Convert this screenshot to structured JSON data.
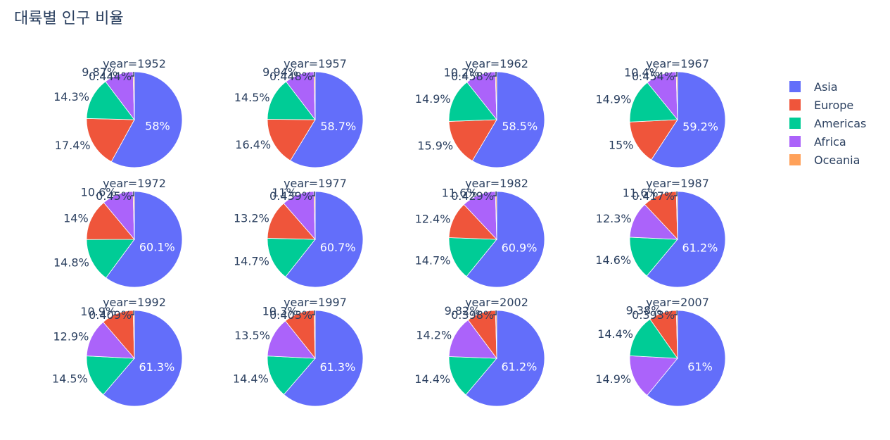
{
  "title": "대륙별 인구 비율",
  "chart_data": {
    "type": "pie",
    "legend_position": "right",
    "categories": [
      "Asia",
      "Europe",
      "Americas",
      "Africa",
      "Oceania"
    ],
    "colors": {
      "Asia": "#636efa",
      "Europe": "#ef553b",
      "Americas": "#00cc96",
      "Africa": "#ab63fa",
      "Oceania": "#ffa15a"
    },
    "panels": [
      {
        "title": "year=1952",
        "order": [
          "Asia",
          "Europe",
          "Americas",
          "Africa",
          "Oceania"
        ],
        "values": {
          "Asia": 58.0,
          "Europe": 17.4,
          "Americas": 14.3,
          "Africa": 9.87,
          "Oceania": 0.444
        },
        "labels": {
          "Asia": "58%",
          "Europe": "17.4%",
          "Americas": "14.3%",
          "Africa": "9.87%",
          "Oceania": "0.444%"
        }
      },
      {
        "title": "year=1957",
        "order": [
          "Asia",
          "Europe",
          "Americas",
          "Africa",
          "Oceania"
        ],
        "values": {
          "Asia": 58.7,
          "Europe": 16.4,
          "Americas": 14.5,
          "Africa": 9.94,
          "Oceania": 0.448
        },
        "labels": {
          "Asia": "58.7%",
          "Europe": "16.4%",
          "Americas": "14.5%",
          "Africa": "9.94%",
          "Oceania": "0.448%"
        }
      },
      {
        "title": "year=1962",
        "order": [
          "Asia",
          "Europe",
          "Americas",
          "Africa",
          "Oceania"
        ],
        "values": {
          "Asia": 58.5,
          "Europe": 15.9,
          "Americas": 14.9,
          "Africa": 10.2,
          "Oceania": 0.458
        },
        "labels": {
          "Asia": "58.5%",
          "Europe": "15.9%",
          "Americas": "14.9%",
          "Africa": "10.2%",
          "Oceania": "0.458%"
        }
      },
      {
        "title": "year=1967",
        "order": [
          "Asia",
          "Europe",
          "Americas",
          "Africa",
          "Oceania"
        ],
        "values": {
          "Asia": 59.2,
          "Europe": 15.0,
          "Americas": 14.9,
          "Africa": 10.4,
          "Oceania": 0.454
        },
        "labels": {
          "Asia": "59.2%",
          "Europe": "15%",
          "Americas": "14.9%",
          "Africa": "10.4%",
          "Oceania": "0.454%"
        }
      },
      {
        "title": "year=1972",
        "order": [
          "Asia",
          "Americas",
          "Europe",
          "Africa",
          "Oceania"
        ],
        "values": {
          "Asia": 60.1,
          "Americas": 14.8,
          "Europe": 14.0,
          "Africa": 10.6,
          "Oceania": 0.45
        },
        "labels": {
          "Asia": "60.1%",
          "Americas": "14.8%",
          "Europe": "14%",
          "Africa": "10.6%",
          "Oceania": "0.45%"
        }
      },
      {
        "title": "year=1977",
        "order": [
          "Asia",
          "Americas",
          "Europe",
          "Africa",
          "Oceania"
        ],
        "values": {
          "Asia": 60.7,
          "Americas": 14.7,
          "Europe": 13.2,
          "Africa": 11.0,
          "Oceania": 0.439
        },
        "labels": {
          "Asia": "60.7%",
          "Americas": "14.7%",
          "Europe": "13.2%",
          "Africa": "11%",
          "Oceania": "0.439%"
        }
      },
      {
        "title": "year=1982",
        "order": [
          "Asia",
          "Americas",
          "Europe",
          "Africa",
          "Oceania"
        ],
        "values": {
          "Asia": 60.9,
          "Americas": 14.7,
          "Europe": 12.4,
          "Africa": 11.6,
          "Oceania": 0.429
        },
        "labels": {
          "Asia": "60.9%",
          "Americas": "14.7%",
          "Europe": "12.4%",
          "Africa": "11.6%",
          "Oceania": "0.429%"
        }
      },
      {
        "title": "year=1987",
        "order": [
          "Asia",
          "Americas",
          "Africa",
          "Europe",
          "Oceania"
        ],
        "values": {
          "Asia": 61.2,
          "Americas": 14.6,
          "Africa": 12.3,
          "Europe": 11.6,
          "Oceania": 0.417
        },
        "labels": {
          "Asia": "61.2%",
          "Americas": "14.6%",
          "Africa": "12.3%",
          "Europe": "11.6%",
          "Oceania": "0.417%"
        }
      },
      {
        "title": "year=1992",
        "order": [
          "Asia",
          "Americas",
          "Africa",
          "Europe",
          "Oceania"
        ],
        "values": {
          "Asia": 61.3,
          "Americas": 14.5,
          "Africa": 12.9,
          "Europe": 10.9,
          "Oceania": 0.409
        },
        "labels": {
          "Asia": "61.3%",
          "Americas": "14.5%",
          "Africa": "12.9%",
          "Europe": "10.9%",
          "Oceania": "0.409%"
        }
      },
      {
        "title": "year=1997",
        "order": [
          "Asia",
          "Americas",
          "Africa",
          "Europe",
          "Oceania"
        ],
        "values": {
          "Asia": 61.3,
          "Americas": 14.4,
          "Africa": 13.5,
          "Europe": 10.3,
          "Oceania": 0.403
        },
        "labels": {
          "Asia": "61.3%",
          "Americas": "14.4%",
          "Africa": "13.5%",
          "Europe": "10.3%",
          "Oceania": "0.403%"
        }
      },
      {
        "title": "year=2002",
        "order": [
          "Asia",
          "Americas",
          "Africa",
          "Europe",
          "Oceania"
        ],
        "values": {
          "Asia": 61.2,
          "Americas": 14.4,
          "Africa": 14.2,
          "Europe": 9.82,
          "Oceania": 0.398
        },
        "labels": {
          "Asia": "61.2%",
          "Americas": "14.4%",
          "Africa": "14.2%",
          "Europe": "9.82%",
          "Oceania": "0.398%"
        }
      },
      {
        "title": "year=2007",
        "order": [
          "Asia",
          "Africa",
          "Americas",
          "Europe",
          "Oceania"
        ],
        "values": {
          "Asia": 61.0,
          "Africa": 14.9,
          "Americas": 14.4,
          "Europe": 9.38,
          "Oceania": 0.393
        },
        "labels": {
          "Asia": "61%",
          "Africa": "14.9%",
          "Americas": "14.4%",
          "Europe": "9.38%",
          "Oceania": "0.393%"
        }
      }
    ]
  }
}
